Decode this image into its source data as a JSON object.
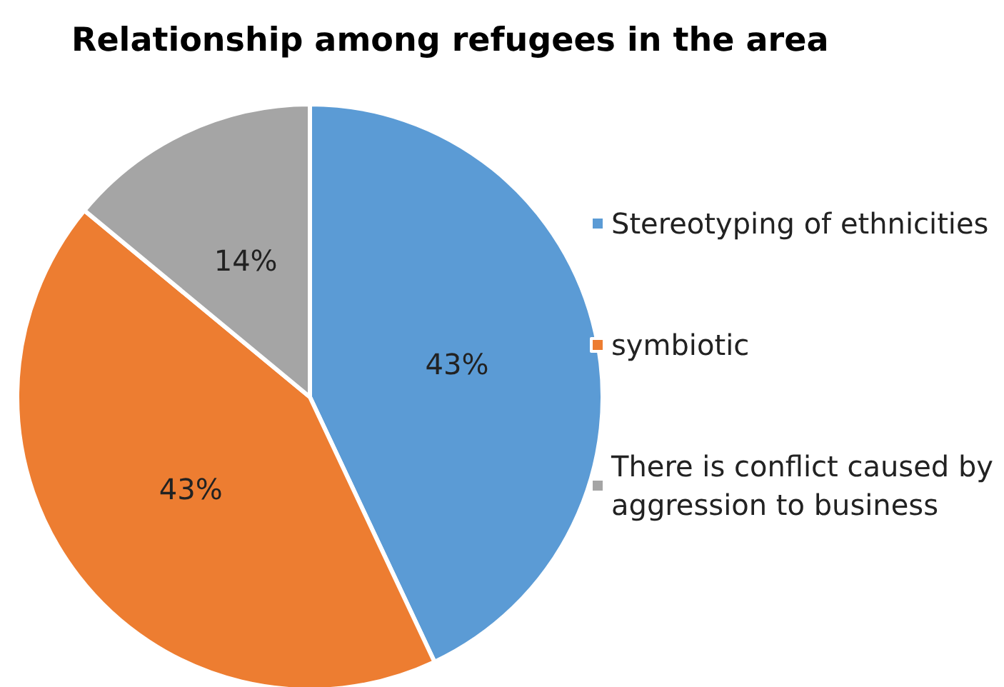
{
  "chart_data": {
    "type": "pie",
    "title": "Relationship among refugees in the area",
    "categories": [
      "Stereotyping of ethnicities",
      "symbiotic",
      "There is conflict caused by aggression to business"
    ],
    "values": [
      43,
      43,
      14
    ],
    "colors": [
      "#5b9bd5",
      "#ed7d31",
      "#a5a5a5"
    ],
    "value_labels": [
      "43%",
      "43%",
      "14%"
    ],
    "legend": "right"
  }
}
